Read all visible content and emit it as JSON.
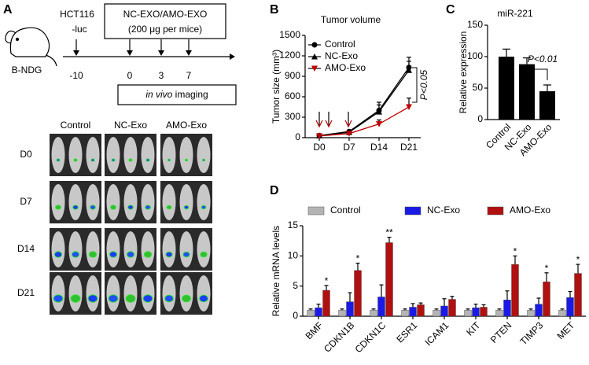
{
  "panel_a": {
    "label": "A",
    "cell_line": [
      "HCT116",
      "-luc"
    ],
    "treatment": [
      "NC-EXO/AMO-EXO",
      "(200 μg per mice)"
    ],
    "mouse": "B-NDG",
    "timepoints": [
      "-10",
      "0",
      "3",
      "7"
    ],
    "imaging": {
      "italic": "in vivo",
      "text": " imaging"
    },
    "columns": [
      "Control",
      "NC-Exo",
      "AMO-Exo"
    ],
    "rows": [
      "D0",
      "D7",
      "D14",
      "D21"
    ]
  },
  "chart_data": [
    {
      "panel": "B",
      "type": "line",
      "title": "Tumor volume",
      "y_label": "Tumor size (mm³)",
      "categories": [
        "D0",
        "D7",
        "D14",
        "D21"
      ],
      "series": [
        {
          "name": "Control",
          "color": "#000000",
          "marker": "circle",
          "values": [
            30,
            90,
            400,
            1030
          ],
          "errors": [
            10,
            20,
            120,
            150
          ]
        },
        {
          "name": "NC-Exo",
          "color": "#000000",
          "marker": "triangle",
          "values": [
            30,
            80,
            380,
            990
          ],
          "errors": [
            10,
            20,
            100,
            130
          ]
        },
        {
          "name": "AMO-Exo",
          "color": "#c00000",
          "marker": "triangle-down",
          "values": [
            25,
            60,
            200,
            450
          ],
          "errors": [
            10,
            15,
            60,
            130
          ]
        }
      ],
      "ylim": [
        0,
        1500
      ],
      "yticks": [
        0,
        300,
        600,
        900,
        1200,
        1500
      ],
      "annotation": "P<0.05"
    },
    {
      "panel": "C",
      "type": "bar",
      "title": "miR-221",
      "y_label": "Relative expression",
      "categories": [
        "Control",
        "NC-Exo",
        "AMO-Exo"
      ],
      "values": [
        100,
        88,
        45
      ],
      "errors": [
        12,
        10,
        10
      ],
      "color": "#000000",
      "ylim": [
        0,
        150
      ],
      "yticks": [
        0,
        50,
        100,
        150
      ],
      "annotation": "P<0.01"
    },
    {
      "panel": "D",
      "type": "grouped_bar",
      "y_label": "Relative mRNA levels",
      "categories": [
        "BMF",
        "CDKN1B",
        "CDKN1C",
        "ESR1",
        "ICAM1",
        "KIT",
        "PTEN",
        "TIMP3",
        "MET"
      ],
      "series": [
        {
          "name": "Control",
          "color": "#b4b4b4",
          "values": [
            1,
            1,
            1,
            1,
            1,
            1,
            1,
            1,
            1
          ],
          "errors": [
            0.2,
            0.2,
            0.2,
            0.2,
            0.2,
            0.2,
            0.2,
            0.2,
            0.2
          ]
        },
        {
          "name": "NC-Exo",
          "color": "#1a1ae6",
          "values": [
            1.4,
            2.4,
            3.2,
            1.5,
            1.7,
            1.4,
            2.7,
            2.0,
            3.1
          ],
          "errors": [
            0.6,
            1.5,
            2.0,
            0.6,
            1.2,
            0.6,
            1.5,
            1.0,
            1.0
          ]
        },
        {
          "name": "AMO-Exo",
          "color": "#b01010",
          "values": [
            4.3,
            7.6,
            12.2,
            1.9,
            2.8,
            1.5,
            8.6,
            5.7,
            7.1
          ],
          "errors": [
            0.8,
            1.2,
            0.9,
            0.3,
            0.5,
            0.4,
            1.4,
            1.5,
            1.5
          ]
        }
      ],
      "significance": [
        "*",
        "*",
        "**",
        null,
        null,
        null,
        "*",
        "*",
        "*"
      ],
      "ylim": [
        0,
        15
      ],
      "yticks": [
        0,
        5,
        10,
        15
      ]
    }
  ]
}
